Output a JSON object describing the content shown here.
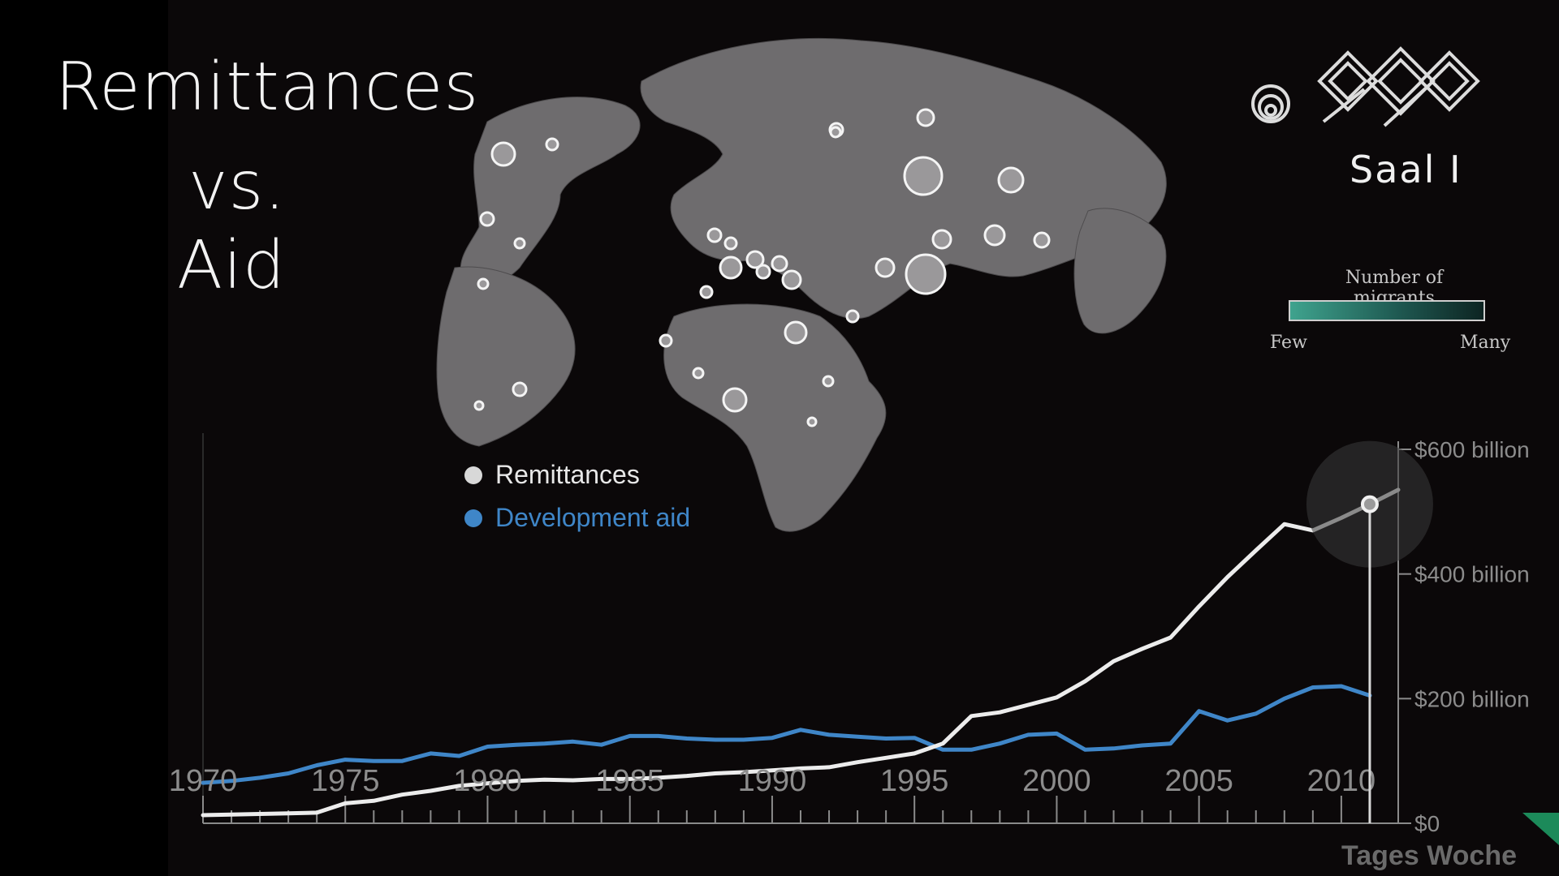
{
  "slide": {
    "title_lines": [
      "Remittances",
      "vs.",
      "Aid"
    ],
    "room_label": "Saal I",
    "brand": "Tages Woche"
  },
  "map_legend": {
    "title": "Number of migrants",
    "low": "Few",
    "high": "Many",
    "colors": [
      "#3fa38e",
      "#0d2422"
    ]
  },
  "chart_data": {
    "type": "line",
    "title": "",
    "xlabel": "",
    "ylabel": "",
    "x_ticks": [
      "1970",
      "1975",
      "1980",
      "1985",
      "1990",
      "1995",
      "2000",
      "2005",
      "2010"
    ],
    "y_ticks": [
      "$0",
      "$200 billion",
      "$400 billion",
      "$600 billion"
    ],
    "xlim": [
      1970,
      2012
    ],
    "ylim": [
      0,
      600
    ],
    "y_units": "billion USD",
    "legend_position": "top-left",
    "highlight_year": 2011,
    "series": [
      {
        "name": "Remittances",
        "color": "#ececec",
        "x": [
          1970,
          1971,
          1972,
          1973,
          1974,
          1975,
          1976,
          1977,
          1978,
          1979,
          1980,
          1981,
          1982,
          1983,
          1984,
          1985,
          1986,
          1987,
          1988,
          1989,
          1990,
          1991,
          1992,
          1993,
          1994,
          1995,
          1996,
          1997,
          1998,
          1999,
          2000,
          2001,
          2002,
          2003,
          2004,
          2005,
          2006,
          2007,
          2008,
          2009,
          2010,
          2011,
          2012
        ],
        "values": [
          13,
          14,
          15,
          16,
          17,
          32,
          36,
          46,
          52,
          60,
          64,
          68,
          70,
          69,
          71,
          71,
          73,
          76,
          80,
          82,
          85,
          88,
          90,
          98,
          105,
          112,
          128,
          172,
          178,
          190,
          202,
          228,
          260,
          280,
          298,
          348,
          395,
          438,
          480,
          470,
          490,
          512,
          535
        ]
      },
      {
        "name": "Development aid",
        "color": "#3f86c8",
        "x": [
          1970,
          1971,
          1972,
          1973,
          1974,
          1975,
          1976,
          1977,
          1978,
          1979,
          1980,
          1981,
          1982,
          1983,
          1984,
          1985,
          1986,
          1987,
          1988,
          1989,
          1990,
          1991,
          1992,
          1993,
          1994,
          1995,
          1996,
          1997,
          1998,
          1999,
          2000,
          2001,
          2002,
          2003,
          2004,
          2005,
          2006,
          2007,
          2008,
          2009,
          2010,
          2011
        ],
        "values": [
          65,
          68,
          73,
          80,
          93,
          102,
          100,
          100,
          112,
          108,
          123,
          126,
          128,
          131,
          126,
          140,
          140,
          136,
          134,
          134,
          137,
          150,
          142,
          139,
          136,
          137,
          118,
          118,
          128,
          142,
          144,
          118,
          120,
          125,
          128,
          180,
          165,
          176,
          200,
          218,
          220,
          205
        ]
      }
    ]
  }
}
